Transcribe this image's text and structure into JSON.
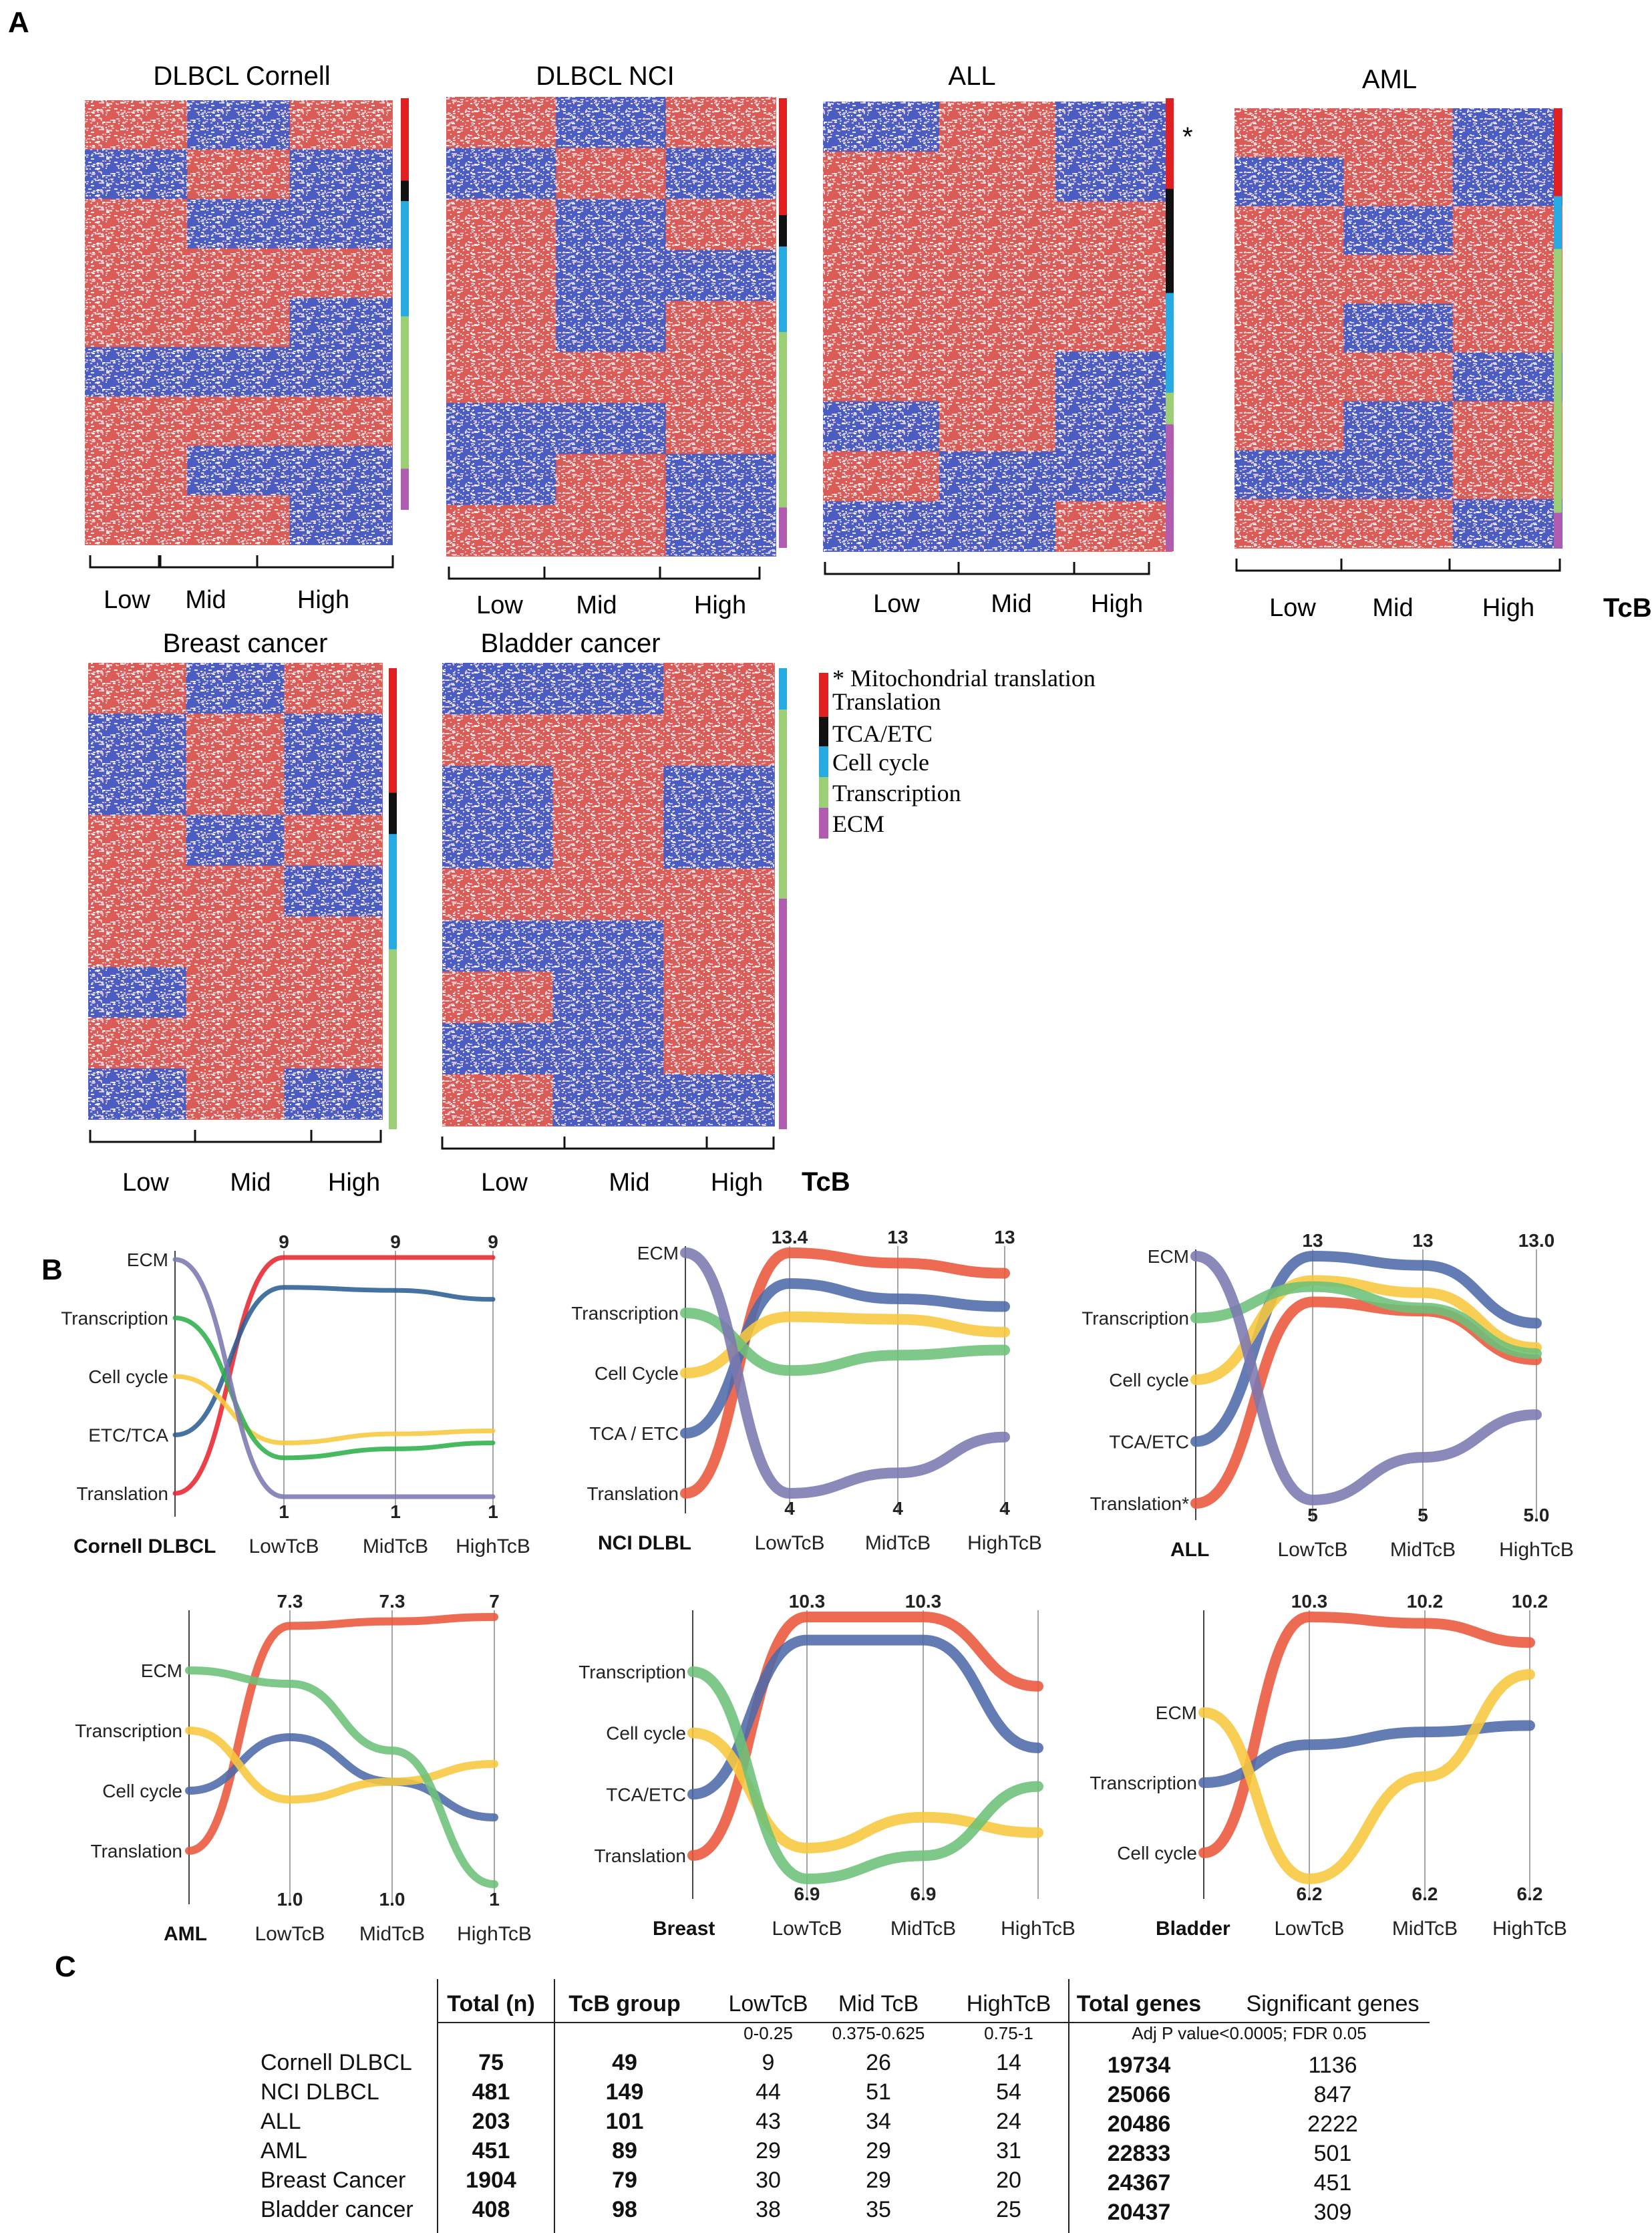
{
  "panel_labels": [
    "A",
    "B",
    "C"
  ],
  "colors": {
    "red": "#e8392e",
    "blue": "#2f43b5",
    "white": "#f4f4f8",
    "Translation": "#e02020",
    "TCA/ETC": "#111111",
    "Cell cycle": "#27a9e1",
    "Transcription": "#9ccf75",
    "ECM": "#b05cb0",
    "line_translation": "#e9573a",
    "line_ecm": "#7b78b0",
    "line_transcription": "#6cc079",
    "line_cellcycle": "#f7c83c",
    "line_tca": "#4d6aa8",
    "line_red": "#e8262e",
    "line_dkblue": "#2c5e94",
    "line_green": "#2db04b"
  },
  "heatmaps": [
    {
      "title": "DLBCL Cornell",
      "groups": [
        "Low",
        "Mid",
        "High"
      ],
      "segments": [
        [
          "Translation",
          0.2
        ],
        [
          "TCA/ETC",
          0.05
        ],
        [
          "Cell cycle",
          0.28
        ],
        [
          "Transcription",
          0.37
        ],
        [
          "ECM",
          0.1
        ]
      ]
    },
    {
      "title": "DLBCL NCI",
      "groups": [
        "Low",
        "Mid",
        "High"
      ],
      "segments": [
        [
          "Translation",
          0.26
        ],
        [
          "TCA/ETC",
          0.07
        ],
        [
          "Cell cycle",
          0.19
        ],
        [
          "Transcription",
          0.39
        ],
        [
          "ECM",
          0.09
        ]
      ]
    },
    {
      "title": "ALL",
      "groups": [
        "Low",
        "Mid",
        "High"
      ],
      "segments": [
        [
          "Translation",
          0.2
        ],
        [
          "TCA/ETC",
          0.23
        ],
        [
          "Cell cycle",
          0.22
        ],
        [
          "Transcription",
          0.07
        ],
        [
          "ECM",
          0.28
        ]
      ],
      "star": "*"
    },
    {
      "title": "AML",
      "groups": [
        "Low",
        "Mid",
        "High"
      ],
      "segments": [
        [
          "Translation",
          0.2
        ],
        [
          "Cell cycle",
          0.12
        ],
        [
          "Transcription",
          0.6
        ],
        [
          "ECM",
          0.08
        ]
      ]
    },
    {
      "title": "Breast cancer",
      "groups": [
        "Low",
        "Mid",
        "High"
      ],
      "segments": [
        [
          "Translation",
          0.27
        ],
        [
          "TCA/ETC",
          0.09
        ],
        [
          "Cell cycle",
          0.25
        ],
        [
          "Transcription",
          0.39
        ]
      ]
    },
    {
      "title": "Bladder cancer",
      "groups": [
        "Low",
        "Mid",
        "High"
      ],
      "segments": [
        [
          "Cell cycle",
          0.09
        ],
        [
          "Transcription",
          0.41
        ],
        [
          "ECM",
          0.5
        ]
      ]
    }
  ],
  "tcb_label": "TcB",
  "legend": [
    {
      "label": "* Mitochondrial translation",
      "color": ""
    },
    {
      "label": "Translation",
      "color": "#e02020"
    },
    {
      "label": "TCA/ETC",
      "color": "#111111"
    },
    {
      "label": "Cell cycle",
      "color": "#27a9e1"
    },
    {
      "label": "Transcription",
      "color": "#9ccf75"
    },
    {
      "label": "ECM",
      "color": "#b05cb0"
    }
  ],
  "chart_data": [
    {
      "type": "line",
      "title": "Cornell DLBCL",
      "categories": [
        "",
        "LowTcB",
        "MidTcB",
        "HighTcB"
      ],
      "y_categories": [
        "ECM",
        "Transcription",
        "Cell cycle",
        "ETC/TCA",
        "Translation"
      ],
      "top_labels": [
        "9",
        "9",
        "9"
      ],
      "bottom_labels": [
        "1",
        "1",
        "1"
      ],
      "series": [
        {
          "name": "Translation",
          "color": "#e8262e",
          "values": [
            1,
            9,
            9,
            9
          ]
        },
        {
          "name": "ETC/TCA",
          "color": "#2c5e94",
          "values": [
            2,
            8,
            7.9,
            7.6
          ]
        },
        {
          "name": "Cell cycle",
          "color": "#f7c83c",
          "values": [
            3,
            2.8,
            3.1,
            3.2
          ]
        },
        {
          "name": "Transcription",
          "color": "#2db04b",
          "values": [
            4,
            2.3,
            2.6,
            2.8
          ]
        },
        {
          "name": "ECM",
          "color": "#7b78b0",
          "values": [
            5,
            1,
            1,
            1
          ]
        }
      ]
    },
    {
      "type": "line",
      "title": "NCI DLBL",
      "categories": [
        "",
        "LowTcB",
        "MidTcB",
        "HighTcB"
      ],
      "y_categories": [
        "ECM",
        "Transcription",
        "Cell Cycle",
        "TCA / ETC",
        "Translation"
      ],
      "top_labels": [
        "13.4",
        "13",
        "13"
      ],
      "bottom_labels": [
        "4",
        "4",
        "4"
      ],
      "series": [
        {
          "name": "Translation",
          "color": "#e9573a",
          "values": [
            1,
            13.4,
            13,
            12.6
          ]
        },
        {
          "name": "TCA / ETC",
          "color": "#4d6aa8",
          "values": [
            2,
            12.2,
            11.6,
            11.3
          ]
        },
        {
          "name": "Cell Cycle",
          "color": "#f7c83c",
          "values": [
            3,
            10.9,
            10.8,
            10.3
          ]
        },
        {
          "name": "Transcription",
          "color": "#6cc079",
          "values": [
            4,
            8.8,
            9.4,
            9.6
          ]
        },
        {
          "name": "ECM",
          "color": "#7b78b0",
          "values": [
            5,
            4,
            4.8,
            6.2
          ]
        }
      ]
    },
    {
      "type": "line",
      "title": "ALL",
      "categories": [
        "",
        "LowTcB",
        "MidTcB",
        "HighTcB"
      ],
      "y_categories": [
        "ECM",
        "Transcription",
        "Cell cycle",
        "TCA/ETC",
        "Translation*"
      ],
      "top_labels": [
        "13",
        "13",
        "13.0"
      ],
      "bottom_labels": [
        "5",
        "5",
        "5.0"
      ],
      "series": [
        {
          "name": "Translation",
          "color": "#e9573a",
          "values": [
            1,
            11.5,
            11.2,
            9.6
          ]
        },
        {
          "name": "TCA/ETC",
          "color": "#4d6aa8",
          "values": [
            2,
            13,
            12.7,
            10.8
          ]
        },
        {
          "name": "Cell cycle",
          "color": "#f7c83c",
          "values": [
            3,
            12.2,
            11.8,
            10
          ]
        },
        {
          "name": "Transcription",
          "color": "#6cc079",
          "values": [
            4,
            12,
            11.3,
            9.8
          ]
        },
        {
          "name": "ECM",
          "color": "#7b78b0",
          "values": [
            5,
            5,
            6.4,
            7.8
          ]
        }
      ]
    },
    {
      "type": "line",
      "title": "AML",
      "categories": [
        "",
        "LowTcB",
        "MidTcB",
        "HighTcB"
      ],
      "y_categories": [
        "ECM",
        "Transcription",
        "Cell cycle",
        "Translation"
      ],
      "top_labels": [
        "7.3",
        "7.3",
        "7"
      ],
      "bottom_labels": [
        "1.0",
        "1.0",
        "1"
      ],
      "series": [
        {
          "name": "Translation",
          "color": "#e9573a",
          "values": [
            1,
            6.8,
            6.9,
            7
          ]
        },
        {
          "name": "Cell cycle",
          "color": "#4d6aa8",
          "values": [
            2,
            4.3,
            3.3,
            2.5
          ]
        },
        {
          "name": "Transcription",
          "color": "#f7c83c",
          "values": [
            3,
            2.9,
            3.3,
            3.7
          ]
        },
        {
          "name": "ECM",
          "color": "#6cc079",
          "values": [
            4,
            5.5,
            4,
            1
          ]
        }
      ]
    },
    {
      "type": "line",
      "title": "Breast",
      "categories": [
        "",
        "LowTcB",
        "MidTcB",
        "HighTcB"
      ],
      "y_categories": [
        "Transcription",
        "Cell cycle",
        "TCA/ETC",
        "Translation"
      ],
      "top_labels": [
        "10.3",
        "10.3",
        ""
      ],
      "bottom_labels": [
        "6.9",
        "6.9",
        ""
      ],
      "series": [
        {
          "name": "Translation",
          "color": "#e9573a",
          "values": [
            1,
            10.3,
            10.3,
            9.4
          ]
        },
        {
          "name": "TCA/ETC",
          "color": "#4d6aa8",
          "values": [
            2,
            10,
            10,
            8.6
          ]
        },
        {
          "name": "Cell cycle",
          "color": "#f7c83c",
          "values": [
            3,
            7.3,
            7.7,
            7.5
          ]
        },
        {
          "name": "Transcription",
          "color": "#6cc079",
          "values": [
            4,
            6.9,
            7.2,
            8.1
          ]
        }
      ]
    },
    {
      "type": "line",
      "title": "Bladder",
      "categories": [
        "",
        "LowTcB",
        "MidTcB",
        "HighTcB"
      ],
      "y_categories": [
        "ECM",
        "Transcription",
        "Cell cycle"
      ],
      "top_labels": [
        "10.3",
        "10.2",
        "10.2"
      ],
      "bottom_labels": [
        "6.2",
        "6.2",
        "6.2"
      ],
      "series": [
        {
          "name": "Cell cycle",
          "color": "#e9573a",
          "values": [
            1,
            10.3,
            10.2,
            9.9
          ]
        },
        {
          "name": "Transcription",
          "color": "#4d6aa8",
          "values": [
            2,
            8.3,
            8.5,
            8.6
          ]
        },
        {
          "name": "ECM",
          "color": "#f7c83c",
          "values": [
            3,
            6.2,
            7.8,
            9.4
          ]
        }
      ]
    }
  ],
  "table": {
    "headers": [
      "Total (n)",
      "TcB group",
      "LowTcB",
      "Mid TcB",
      "HighTcB",
      "Total genes",
      "Significant genes"
    ],
    "subheaders": [
      "0-0.25",
      "0.375-0.625",
      "0.75-1"
    ],
    "sig_note": "Adj P value<0.0005;  FDR 0.05",
    "rows": [
      {
        "name": "Cornell DLBCL",
        "total": "75",
        "tcb": "49",
        "low": "9",
        "mid": "26",
        "high": "14",
        "genes": "19734",
        "sig": "1136"
      },
      {
        "name": "NCI DLBCL",
        "total": "481",
        "tcb": "149",
        "low": "44",
        "mid": "51",
        "high": "54",
        "genes": "25066",
        "sig": "847"
      },
      {
        "name": "ALL",
        "total": "203",
        "tcb": "101",
        "low": "43",
        "mid": "34",
        "high": "24",
        "genes": "20486",
        "sig": "2222"
      },
      {
        "name": "AML",
        "total": "451",
        "tcb": "89",
        "low": "29",
        "mid": "29",
        "high": "31",
        "genes": "22833",
        "sig": "501"
      },
      {
        "name": "Breast Cancer",
        "total": "1904",
        "tcb": "79",
        "low": "30",
        "mid": "29",
        "high": "20",
        "genes": "24367",
        "sig": "451"
      },
      {
        "name": "Bladder cancer",
        "total": "408",
        "tcb": "98",
        "low": "38",
        "mid": "35",
        "high": "25",
        "genes": "20437",
        "sig": "309"
      }
    ]
  }
}
